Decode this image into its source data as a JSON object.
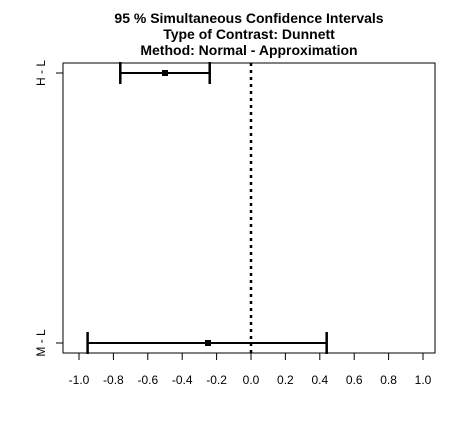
{
  "chart_data": {
    "type": "interval",
    "title": [
      "95 % Simultaneous Confidence Intervals",
      "Type of Contrast: Dunnett",
      "Method: Normal - Approximation"
    ],
    "xlabel": "",
    "ylabel": "",
    "xlim": [
      -1.0,
      1.0
    ],
    "x_ticks": [
      -1.0,
      -0.8,
      -0.6,
      -0.4,
      -0.2,
      0.0,
      0.2,
      0.4,
      0.6,
      0.8,
      1.0
    ],
    "x_tick_labels": [
      "-1.0",
      "-0.8",
      "-0.6",
      "-0.4",
      "-0.2",
      "0.0",
      "0.2",
      "0.4",
      "0.6",
      "0.8",
      "1.0"
    ],
    "reference_line": {
      "x": 0.0,
      "style": "dotted"
    },
    "grid": false,
    "intervals": [
      {
        "label": "H - L",
        "estimate": -0.5,
        "lower": -0.76,
        "upper": -0.24
      },
      {
        "label": "M - L",
        "estimate": -0.25,
        "lower": -0.95,
        "upper": 0.44
      }
    ]
  }
}
